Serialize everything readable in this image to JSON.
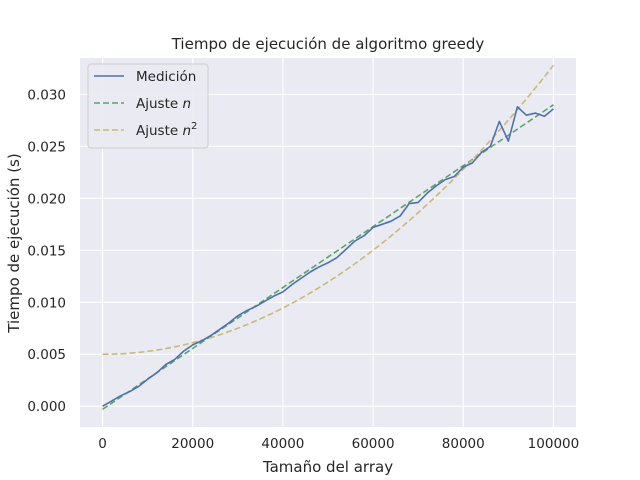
{
  "chart_data": {
    "type": "line",
    "title": "Tiempo de ejecución de algoritmo greedy",
    "xlabel": "Tamaño del array",
    "ylabel": "Tiempo de ejecución (s)",
    "xlim": [
      -5000,
      105000
    ],
    "ylim": [
      -0.002,
      0.0335
    ],
    "x_ticks": [
      0,
      20000,
      40000,
      60000,
      80000,
      100000
    ],
    "y_ticks": [
      0.0,
      0.005,
      0.01,
      0.015,
      0.02,
      0.025,
      0.03
    ],
    "grid": true,
    "legend_position": "top-left",
    "legend": {
      "entries": [
        {
          "label": "Medición"
        },
        {
          "label": "Ajuste ",
          "math": "n"
        },
        {
          "label": "Ajuste ",
          "math": "n",
          "sup": "2"
        }
      ]
    },
    "series": [
      {
        "name": "Medición",
        "style": "solid",
        "color": "#4c72b0",
        "x": [
          0,
          2000,
          4000,
          6000,
          8000,
          10000,
          12000,
          14000,
          16000,
          18000,
          20000,
          22000,
          24000,
          26000,
          28000,
          30000,
          32000,
          34000,
          36000,
          38000,
          40000,
          42000,
          44000,
          46000,
          48000,
          50000,
          52000,
          54000,
          56000,
          58000,
          60000,
          62000,
          64000,
          66000,
          68000,
          70000,
          72000,
          74000,
          76000,
          78000,
          80000,
          82000,
          84000,
          86000,
          88000,
          90000,
          92000,
          94000,
          96000,
          98000,
          100000
        ],
        "y": [
          0.0,
          0.0005,
          0.001,
          0.0014,
          0.0019,
          0.0026,
          0.0032,
          0.004,
          0.0045,
          0.0053,
          0.0059,
          0.0063,
          0.0068,
          0.0074,
          0.008,
          0.0087,
          0.0092,
          0.0096,
          0.0101,
          0.0106,
          0.011,
          0.0117,
          0.0123,
          0.0129,
          0.0134,
          0.0138,
          0.0143,
          0.0151,
          0.0159,
          0.0164,
          0.0172,
          0.0175,
          0.0178,
          0.0183,
          0.0195,
          0.0196,
          0.0205,
          0.0212,
          0.0218,
          0.0221,
          0.023,
          0.0234,
          0.0244,
          0.025,
          0.0274,
          0.0255,
          0.0288,
          0.028,
          0.0282,
          0.0279,
          0.0286
        ]
      },
      {
        "name": "Ajuste ",
        "style": "dashed",
        "color": "#55a868",
        "x": [
          0,
          100000
        ],
        "y": [
          -0.0003,
          0.029
        ]
      },
      {
        "name": "Ajuste ",
        "style": "dashed",
        "color": "#ccb974",
        "quadratic": {
          "a": 2.78e-12,
          "c": 0.005
        },
        "x": [
          0,
          100000
        ],
        "y": [
          0.005,
          0.0328
        ]
      }
    ]
  }
}
